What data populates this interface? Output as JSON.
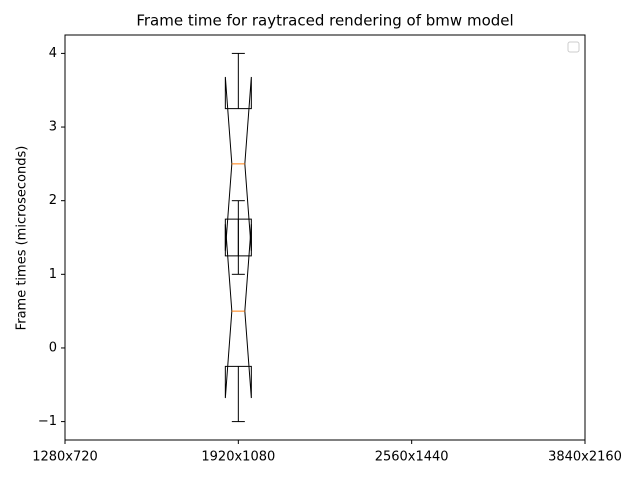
{
  "chart_data": {
    "type": "boxplot",
    "title": "Frame time for raytraced rendering of bmw model",
    "ylabel": "Frame times (microseconds)",
    "categories": [
      "1280x720",
      "1920x1080",
      "2560x1440",
      "3840x2160"
    ],
    "ylim": [
      -1.25,
      4.25
    ],
    "yticks": [
      {
        "value": -1,
        "label": "−1"
      },
      0,
      1,
      2,
      3,
      4
    ],
    "legend": "upper right",
    "box_color": "#000000",
    "median_color": "#ff7f0e",
    "boxes": [
      {
        "category": "1920x1080",
        "whislo": 1,
        "q1": 1.75,
        "med": 2.5,
        "q3": 3.25,
        "whishi": 4,
        "notch_low": 1.32,
        "notch_high": 3.68
      },
      {
        "category": "1920x1080",
        "whislo": -1,
        "q1": -0.25,
        "med": 0.5,
        "q3": 1.25,
        "whishi": 2,
        "notch_low": -0.68,
        "notch_high": 1.68
      }
    ]
  }
}
